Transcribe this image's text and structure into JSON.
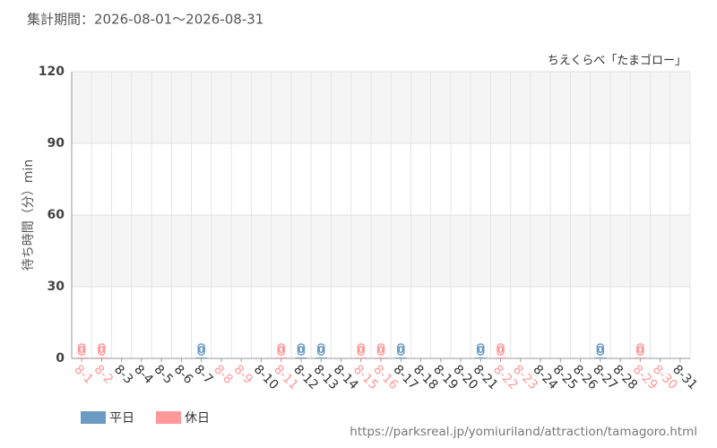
{
  "chart_data": {
    "type": "bar",
    "title": "集計期間：2026-08-01～2026-08-31",
    "subtitle": "ちえくらべ「たまゴロー」",
    "y_label": "待ち時間（分）min",
    "source": "https://parksreal.jp/yomiuriland/attraction/tamagoro.html",
    "categories": [
      "8-1",
      "8-2",
      "8-3",
      "8-4",
      "8-5",
      "8-6",
      "8-7",
      "8-8",
      "8-9",
      "8-10",
      "8-11",
      "8-12",
      "8-13",
      "8-14",
      "8-15",
      "8-16",
      "8-17",
      "8-18",
      "8-19",
      "8-20",
      "8-21",
      "8-22",
      "8-23",
      "8-24",
      "8-25",
      "8-26",
      "8-27",
      "8-28",
      "8-29",
      "8-30",
      "8-31"
    ],
    "category_label_colors": [
      "#ff9999",
      "#ff9999",
      "#333333",
      "#333333",
      "#333333",
      "#333333",
      "#333333",
      "#ff9999",
      "#ff9999",
      "#333333",
      "#ff9999",
      "#333333",
      "#333333",
      "#333333",
      "#ff9999",
      "#ff9999",
      "#333333",
      "#333333",
      "#333333",
      "#333333",
      "#333333",
      "#ff9999",
      "#ff9999",
      "#333333",
      "#333333",
      "#333333",
      "#333333",
      "#333333",
      "#ff9999",
      "#ff9999",
      "#333333"
    ],
    "series": [
      {
        "name": "平日",
        "color": "#6a9bc3",
        "values": [
          null,
          null,
          null,
          null,
          null,
          null,
          0,
          null,
          null,
          null,
          null,
          0,
          0,
          null,
          null,
          null,
          0,
          null,
          null,
          null,
          0,
          null,
          null,
          null,
          null,
          null,
          0,
          null,
          null,
          null,
          null
        ]
      },
      {
        "name": "休日",
        "color": "#ff9999",
        "values": [
          0,
          0,
          null,
          null,
          null,
          null,
          null,
          null,
          null,
          null,
          0,
          null,
          null,
          null,
          0,
          0,
          null,
          null,
          null,
          null,
          null,
          0,
          null,
          null,
          null,
          null,
          null,
          null,
          0,
          null,
          null
        ]
      }
    ],
    "ylim": [
      0,
      120
    ],
    "yticks": [
      0,
      30,
      60,
      90,
      120
    ],
    "grid": true
  }
}
